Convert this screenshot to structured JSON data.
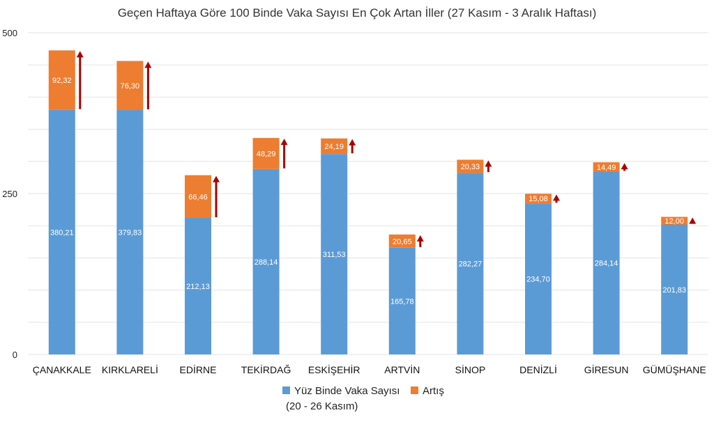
{
  "chart_data": {
    "type": "bar",
    "stacked": true,
    "title": "Geçen Haftaya Göre 100 Binde Vaka Sayısı En Çok Artan İller (27 Kasım - 3 Aralık Haftası)",
    "xlabel": "",
    "ylabel": "",
    "ylim": [
      0,
      500
    ],
    "yticks": [
      "0",
      "250",
      "500"
    ],
    "grid": true,
    "legend_position": "bottom",
    "categories": [
      "ÇANAKKALE",
      "KIRKLARELİ",
      "EDİRNE",
      "TEKİRDAĞ",
      "ESKİŞEHİR",
      "ARTVİN",
      "SİNOP",
      "DENİZLİ",
      "GİRESUN",
      "GÜMÜŞHANE"
    ],
    "series": [
      {
        "name": "Yüz Binde Vaka Sayısı (20 - 26 Kasım)",
        "legend_lines": [
          "Yüz Binde Vaka Sayısı",
          "(20 - 26 Kasım)"
        ],
        "color": "#5b9bd5",
        "values": [
          380.21,
          379.83,
          212.13,
          288.14,
          311.53,
          165.78,
          282.27,
          234.7,
          284.14,
          201.83
        ],
        "labels": [
          "380,21",
          "379,83",
          "212,13",
          "288,14",
          "311,53",
          "165,78",
          "282,27",
          "234,70",
          "284,14",
          "201,83"
        ]
      },
      {
        "name": "Artış",
        "legend_lines": [
          "Artış"
        ],
        "color": "#ed7d31",
        "values": [
          92.32,
          76.3,
          66.46,
          48.29,
          24.19,
          20.65,
          20.33,
          15.08,
          14.49,
          12.0
        ],
        "labels": [
          "92,32",
          "76,30",
          "66,46",
          "48,29",
          "24,19",
          "20,65",
          "20,33",
          "15,08",
          "14,49",
          "12,00"
        ]
      }
    ],
    "arrow_color": "#a80000"
  }
}
